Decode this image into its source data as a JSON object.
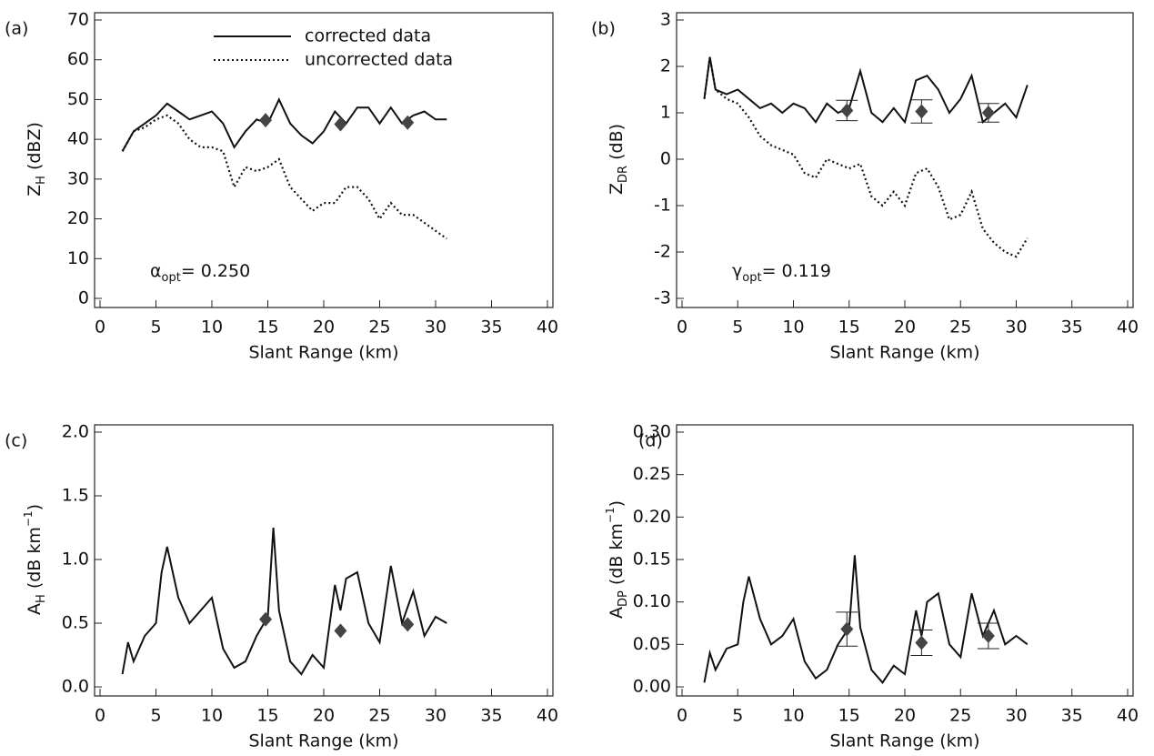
{
  "chart_data": [
    {
      "type": "line",
      "panel_label": "(a)",
      "xlabel": "Slant Range (km)",
      "ylabel": [
        {
          "text": "Z"
        },
        {
          "text": "H",
          "shift": "sub"
        },
        {
          "text": " (dBZ)"
        }
      ],
      "annotation": [
        {
          "text": "α"
        },
        {
          "text": "opt",
          "shift": "sub"
        },
        {
          "text": "= 0.250"
        }
      ],
      "xlim": [
        0,
        40
      ],
      "xticks": [
        0,
        5,
        10,
        15,
        20,
        25,
        30,
        35,
        40
      ],
      "ylim": [
        0,
        70
      ],
      "yticks": [
        0,
        10,
        20,
        30,
        40,
        50,
        60,
        70
      ],
      "series": [
        {
          "name": "corrected data",
          "color": "#111111",
          "dash": "solid",
          "x": [
            2,
            3,
            4,
            5,
            6,
            7,
            8,
            9,
            10,
            11,
            12,
            13,
            14,
            15,
            16,
            17,
            18,
            19,
            20,
            21,
            22,
            23,
            24,
            25,
            26,
            27,
            28,
            29,
            30,
            31
          ],
          "values": [
            37,
            42,
            44,
            46,
            49,
            47,
            45,
            46,
            47,
            44,
            38,
            42,
            45,
            44,
            50,
            44,
            41,
            39,
            42,
            47,
            44,
            48,
            48,
            44,
            48,
            44,
            46,
            47,
            45,
            45
          ]
        },
        {
          "name": "uncorrected data",
          "color": "#111111",
          "dash": "dotted",
          "x": [
            2,
            3,
            4,
            5,
            6,
            7,
            8,
            9,
            10,
            11,
            12,
            13,
            14,
            15,
            16,
            17,
            18,
            19,
            20,
            21,
            22,
            23,
            24,
            25,
            26,
            27,
            28,
            29,
            30,
            31
          ],
          "values": [
            37,
            42,
            43,
            45,
            46,
            44,
            40,
            38,
            38,
            37,
            28,
            33,
            32,
            33,
            35,
            28,
            25,
            22,
            24,
            24,
            28,
            28,
            25,
            20,
            24,
            21,
            21,
            19,
            17,
            15
          ]
        }
      ],
      "markers": {
        "color": "#444444",
        "x": [
          14.8,
          21.5,
          27.5
        ],
        "values": [
          44.8,
          43.8,
          44.2
        ]
      }
    },
    {
      "type": "line",
      "panel_label": "(b)",
      "xlabel": "Slant Range (km)",
      "ylabel": [
        {
          "text": "Z"
        },
        {
          "text": "DR",
          "shift": "sub"
        },
        {
          "text": " (dB)"
        }
      ],
      "annotation": [
        {
          "text": "γ"
        },
        {
          "text": "opt",
          "shift": "sub"
        },
        {
          "text": "= 0.119"
        }
      ],
      "xlim": [
        0,
        40
      ],
      "xticks": [
        0,
        5,
        10,
        15,
        20,
        25,
        30,
        35,
        40
      ],
      "ylim": [
        -3,
        3
      ],
      "yticks": [
        -3,
        -2,
        -1,
        0,
        1,
        2,
        3
      ],
      "series": [
        {
          "color": "#111111",
          "dash": "solid",
          "x": [
            2,
            2.5,
            3,
            4,
            5,
            6,
            7,
            8,
            9,
            10,
            11,
            12,
            13,
            14,
            15,
            16,
            17,
            18,
            19,
            20,
            21,
            22,
            23,
            24,
            25,
            26,
            27,
            28,
            29,
            30,
            31
          ],
          "values": [
            1.3,
            2.2,
            1.5,
            1.4,
            1.5,
            1.3,
            1.1,
            1.2,
            1.0,
            1.2,
            1.1,
            0.8,
            1.2,
            1.0,
            1.1,
            1.9,
            1.0,
            0.8,
            1.1,
            0.8,
            1.7,
            1.8,
            1.5,
            1.0,
            1.3,
            1.8,
            0.8,
            1.0,
            1.2,
            0.9,
            1.6
          ]
        },
        {
          "color": "#111111",
          "dash": "dotted",
          "x": [
            2,
            2.5,
            3,
            4,
            5,
            6,
            7,
            8,
            9,
            10,
            11,
            12,
            13,
            14,
            15,
            16,
            17,
            18,
            19,
            20,
            21,
            22,
            23,
            24,
            25,
            26,
            27,
            28,
            29,
            30,
            31
          ],
          "values": [
            1.3,
            2.2,
            1.5,
            1.3,
            1.2,
            0.9,
            0.5,
            0.3,
            0.2,
            0.1,
            -0.3,
            -0.4,
            0.0,
            -0.1,
            -0.2,
            -0.1,
            -0.8,
            -1.0,
            -0.7,
            -1.0,
            -0.3,
            -0.2,
            -0.6,
            -1.3,
            -1.2,
            -0.7,
            -1.5,
            -1.8,
            -2.0,
            -2.1,
            -1.7
          ]
        }
      ],
      "markers": {
        "color": "#444444",
        "x": [
          14.8,
          21.5,
          27.5
        ],
        "values": [
          1.05,
          1.03,
          1.0
        ],
        "errors": [
          0.22,
          0.25,
          0.2
        ]
      }
    },
    {
      "type": "line",
      "panel_label": "(c)",
      "xlabel": "Slant Range (km)",
      "ylabel": [
        {
          "text": "A"
        },
        {
          "text": "H",
          "shift": "sub"
        },
        {
          "text": " (dB km"
        },
        {
          "text": "−1",
          "shift": "super"
        },
        {
          "text": ")"
        }
      ],
      "xlim": [
        0,
        40
      ],
      "xticks": [
        0,
        5,
        10,
        15,
        20,
        25,
        30,
        35,
        40
      ],
      "ylim": [
        0,
        2
      ],
      "yticks": [
        {
          "value": 0,
          "label": "0.0"
        },
        0.5,
        {
          "value": 1,
          "label": "1.0"
        },
        1.5,
        {
          "value": 2,
          "label": "2.0"
        }
      ],
      "series": [
        {
          "color": "#111111",
          "dash": "solid",
          "x": [
            2,
            2.5,
            3,
            4,
            5,
            5.5,
            6,
            7,
            8,
            9,
            10,
            11,
            12,
            13,
            14,
            15,
            15.5,
            16,
            17,
            18,
            19,
            20,
            21,
            21.5,
            22,
            23,
            24,
            25,
            26,
            27,
            28,
            29,
            30,
            31
          ],
          "values": [
            0.1,
            0.35,
            0.2,
            0.4,
            0.5,
            0.9,
            1.1,
            0.7,
            0.5,
            0.6,
            0.7,
            0.3,
            0.15,
            0.2,
            0.4,
            0.55,
            1.25,
            0.6,
            0.2,
            0.1,
            0.25,
            0.15,
            0.8,
            0.6,
            0.85,
            0.9,
            0.5,
            0.35,
            0.95,
            0.5,
            0.75,
            0.4,
            0.55,
            0.5
          ]
        }
      ],
      "markers": {
        "color": "#444444",
        "x": [
          14.8,
          21.5,
          27.5
        ],
        "values": [
          0.53,
          0.44,
          0.49
        ]
      }
    },
    {
      "type": "line",
      "panel_label": "(d)",
      "xlabel": "Slant Range (km)",
      "ylabel": [
        {
          "text": "A"
        },
        {
          "text": "DP",
          "shift": "sub"
        },
        {
          "text": " (dB km"
        },
        {
          "text": "−1",
          "shift": "super"
        },
        {
          "text": ")"
        }
      ],
      "xlim": [
        0,
        40
      ],
      "xticks": [
        0,
        5,
        10,
        15,
        20,
        25,
        30,
        35,
        40
      ],
      "ylim": [
        0,
        0.3
      ],
      "yticks": [
        {
          "value": 0,
          "label": "0.00"
        },
        0.05,
        {
          "value": 0.1,
          "label": "0.10"
        },
        0.15,
        {
          "value": 0.2,
          "label": "0.20"
        },
        0.25,
        {
          "value": 0.3,
          "label": "0.30"
        }
      ],
      "series": [
        {
          "color": "#111111",
          "dash": "solid",
          "x": [
            2,
            2.5,
            3,
            4,
            5,
            5.5,
            6,
            7,
            8,
            9,
            10,
            11,
            12,
            13,
            14,
            15,
            15.5,
            16,
            17,
            18,
            19,
            20,
            21,
            21.5,
            22,
            23,
            24,
            25,
            26,
            27,
            28,
            29,
            30,
            31
          ],
          "values": [
            0.005,
            0.04,
            0.02,
            0.045,
            0.05,
            0.1,
            0.13,
            0.08,
            0.05,
            0.06,
            0.08,
            0.03,
            0.01,
            0.02,
            0.05,
            0.07,
            0.155,
            0.07,
            0.02,
            0.005,
            0.025,
            0.015,
            0.09,
            0.06,
            0.1,
            0.11,
            0.05,
            0.035,
            0.11,
            0.06,
            0.09,
            0.05,
            0.06,
            0.05
          ]
        }
      ],
      "markers": {
        "color": "#444444",
        "x": [
          14.8,
          21.5,
          27.5
        ],
        "values": [
          0.068,
          0.052,
          0.06
        ],
        "errors": [
          0.02,
          0.015,
          0.015
        ]
      }
    }
  ]
}
